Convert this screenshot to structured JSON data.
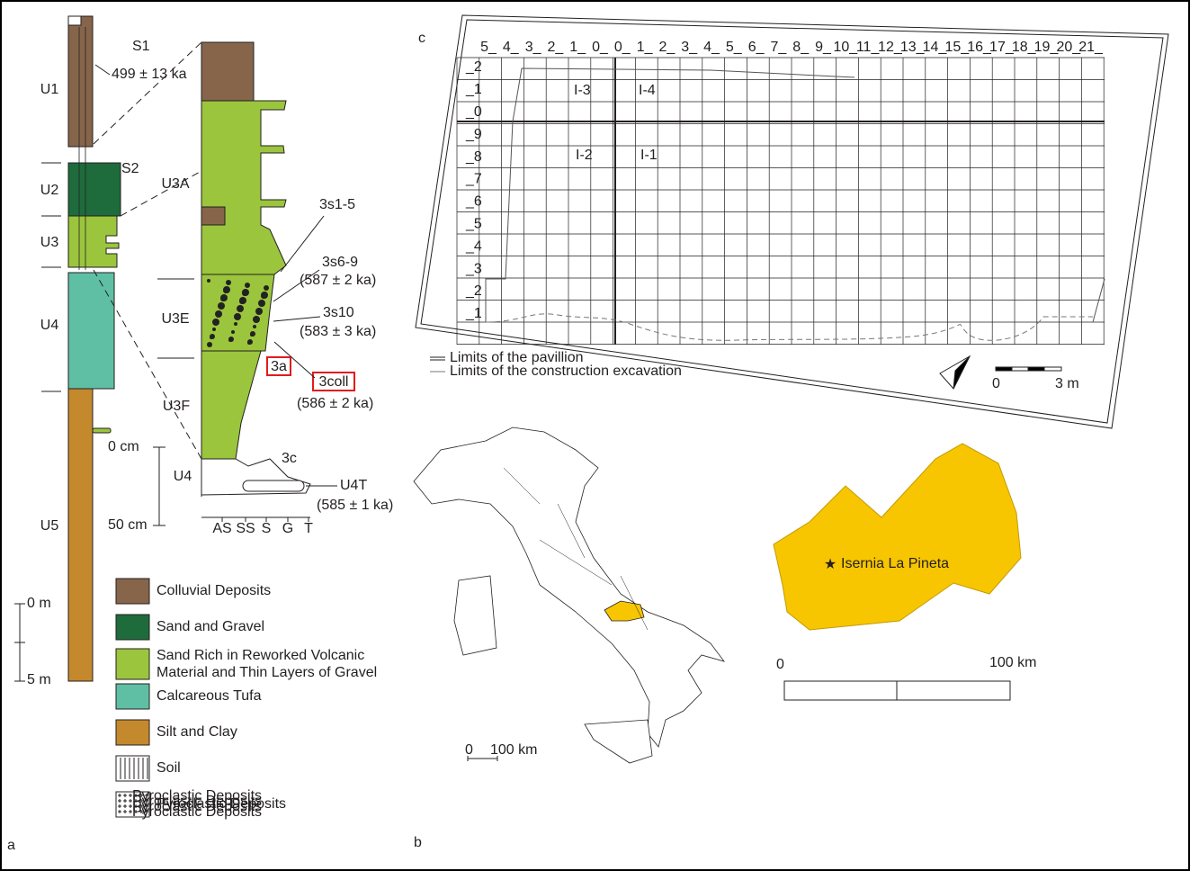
{
  "panel_a": {
    "label": "a",
    "units": [
      "U1",
      "U2",
      "U3",
      "U4",
      "U5"
    ],
    "soils": [
      "S1",
      "S2"
    ],
    "date_s1": "499 ± 13 ka",
    "detail_units": [
      "U3A",
      "U3E",
      "U3F",
      "U4"
    ],
    "samples": [
      {
        "name": "3s1-5"
      },
      {
        "name": "3s6-9",
        "date": "(587 ± 2 ka)"
      },
      {
        "name": "3s10",
        "date": "(583 ± 3 ka)"
      },
      {
        "name": "3a"
      },
      {
        "name": "3coll",
        "date": "(586 ± 2 ka)"
      },
      {
        "name": "3c"
      },
      {
        "name": "U4T",
        "date": "(585 ± 1 ka)"
      }
    ],
    "detail_scale": [
      "0 cm",
      "50 cm"
    ],
    "grain_sizes": [
      "AS",
      "SS",
      "S",
      "G",
      "T"
    ],
    "column_scale": [
      "0 m",
      "5 m"
    ],
    "legend": [
      {
        "color": "#86654a",
        "lines": [
          "Colluvial Deposits"
        ]
      },
      {
        "color": "#1e6b3c",
        "lines": [
          "Sand and Gravel"
        ]
      },
      {
        "color": "#9bc53d",
        "lines": [
          "Sand Rich in Reworked Volcanic",
          "Material and Thin Layers of Gravel"
        ]
      },
      {
        "color": "#5fbfa5",
        "lines": [
          "Calcareous Tufa"
        ]
      },
      {
        "color": "#c4892c",
        "lines": [
          "Silt and Clay"
        ]
      },
      {
        "color": "#ffffff",
        "lines": [
          "Soil"
        ]
      },
      {
        "color": "#ffffff",
        "lines": [
          "Pyroclastic Deposits"
        ]
      }
    ]
  },
  "panel_b": {
    "label": "b",
    "site": "Isernia La Pineta",
    "scale": [
      "0",
      "100 km"
    ],
    "inset_scale": [
      "0",
      "100 km"
    ]
  },
  "panel_c": {
    "label": "c",
    "column_labels": [
      "5_",
      "4_",
      "3_",
      "2_",
      "1_",
      "0_",
      "0_",
      "1_",
      "2_",
      "3_",
      "4_",
      "5_",
      "6_",
      "7_",
      "8_",
      "9_",
      "10_",
      "11_",
      "12_",
      "13_",
      "14_",
      "15_",
      "16_",
      "17_",
      "18_",
      "19_",
      "20_",
      "21_"
    ],
    "row_labels": [
      "_2",
      "_1",
      "_0",
      "_9",
      "_8",
      "_7",
      "_6",
      "_5",
      "_4",
      "_3",
      "_2",
      "_1"
    ],
    "sectors": [
      "I-3",
      "I-4",
      "I-2",
      "I-1"
    ],
    "legend": [
      "Limits of the pavillion",
      "Limits of the construction excavation"
    ],
    "scale": [
      "0",
      "3 m"
    ]
  }
}
